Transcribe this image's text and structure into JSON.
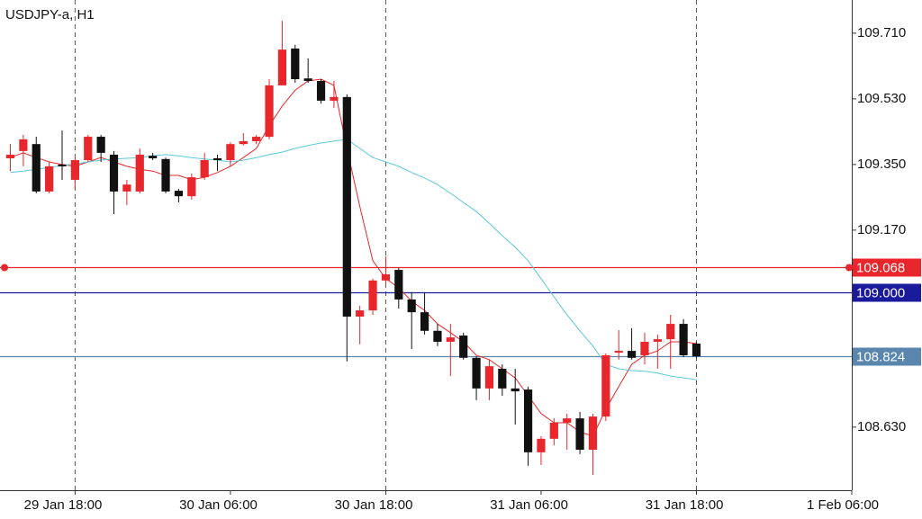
{
  "chart_data": {
    "type": "candlestick",
    "title": "USDJPY-a, H1",
    "up_color": "#e8262b",
    "down_color": "#111111",
    "open": [
      109.367,
      109.387,
      109.406,
      109.276,
      109.35,
      109.308,
      109.362,
      109.426,
      109.377,
      109.276,
      109.276,
      109.374,
      109.365,
      109.278,
      109.263,
      109.315,
      109.367,
      109.362,
      109.406,
      109.414,
      109.426,
      109.567,
      109.668,
      109.586,
      109.579,
      109.525,
      109.535,
      108.933,
      108.95,
      109.032,
      109.061,
      108.98,
      108.945,
      108.894,
      108.864,
      108.881,
      108.82,
      108.736,
      108.79,
      108.736,
      108.733,
      108.561,
      108.598,
      108.642,
      108.654,
      108.568,
      108.659,
      108.834,
      108.839,
      108.827,
      108.864,
      108.871,
      108.913,
      108.859
    ],
    "high": [
      109.406,
      109.431,
      109.426,
      109.357,
      109.443,
      109.369,
      109.431,
      109.431,
      109.387,
      109.308,
      109.394,
      109.382,
      109.369,
      109.283,
      109.325,
      109.382,
      109.377,
      109.411,
      109.436,
      109.431,
      109.584,
      109.744,
      109.678,
      109.641,
      109.584,
      109.579,
      109.542,
      108.963,
      109.037,
      109.098,
      109.066,
      109.0,
      109.0,
      108.913,
      108.913,
      108.889,
      108.824,
      108.815,
      108.802,
      108.79,
      108.741,
      108.605,
      108.654,
      108.667,
      108.672,
      108.667,
      108.832,
      108.896,
      108.901,
      108.889,
      108.884,
      108.938,
      108.926,
      108.864
    ],
    "low": [
      109.332,
      109.345,
      109.271,
      109.271,
      109.308,
      109.283,
      109.357,
      109.357,
      109.214,
      109.239,
      109.271,
      109.362,
      109.271,
      109.246,
      109.254,
      109.308,
      109.332,
      109.345,
      109.402,
      109.406,
      109.419,
      109.567,
      109.574,
      109.574,
      109.517,
      109.505,
      108.81,
      108.857,
      108.938,
      109.024,
      108.955,
      108.844,
      108.884,
      108.852,
      108.77,
      108.815,
      108.704,
      108.704,
      108.716,
      108.637,
      108.524,
      108.526,
      108.58,
      108.568,
      108.556,
      108.499,
      108.647,
      108.815,
      108.815,
      108.802,
      108.79,
      108.79,
      108.822,
      108.82
    ],
    "close": [
      109.377,
      109.419,
      109.276,
      109.345,
      109.345,
      109.362,
      109.426,
      109.382,
      109.276,
      109.295,
      109.377,
      109.367,
      109.276,
      109.263,
      109.315,
      109.362,
      109.362,
      109.406,
      109.414,
      109.426,
      109.567,
      109.665,
      109.584,
      109.579,
      109.525,
      109.535,
      108.933,
      108.95,
      109.032,
      109.049,
      108.98,
      108.945,
      108.894,
      108.864,
      108.876,
      108.82,
      108.736,
      108.797,
      108.736,
      108.728,
      108.561,
      108.598,
      108.642,
      108.654,
      108.568,
      108.659,
      108.827,
      108.839,
      108.82,
      108.864,
      108.871,
      108.913,
      108.827,
      108.824
    ],
    "series": [
      {
        "color": "#e8262b",
        "values": [
          109.369,
          109.382,
          109.369,
          109.357,
          109.35,
          109.345,
          109.357,
          109.369,
          109.357,
          109.345,
          109.337,
          109.332,
          109.32,
          109.32,
          109.308,
          109.315,
          109.328,
          109.345,
          109.369,
          109.394,
          109.456,
          109.51,
          109.554,
          109.579,
          109.584,
          109.567,
          109.394,
          109.234,
          109.086,
          109.037,
          109.012,
          108.975,
          108.95,
          108.913,
          108.889,
          108.864,
          108.827,
          108.815,
          108.79,
          108.765,
          108.716,
          108.667,
          108.642,
          108.642,
          108.617,
          108.605,
          108.679,
          108.741,
          108.802,
          108.827,
          108.839,
          108.864,
          108.864,
          108.859
        ]
      },
      {
        "color": "#5bc8dc",
        "values": [
          109.328,
          109.332,
          109.337,
          109.342,
          109.347,
          109.352,
          109.357,
          109.362,
          109.365,
          109.367,
          109.369,
          109.374,
          109.377,
          109.374,
          109.369,
          109.365,
          109.362,
          109.357,
          109.362,
          109.369,
          109.377,
          109.384,
          109.394,
          109.402,
          109.409,
          109.414,
          109.419,
          109.394,
          109.369,
          109.357,
          109.345,
          109.328,
          109.313,
          109.295,
          109.271,
          109.246,
          109.221,
          109.189,
          109.155,
          109.123,
          109.086,
          109.037,
          108.987,
          108.938,
          108.894,
          108.852,
          108.802,
          108.79,
          108.785,
          108.783,
          108.778,
          108.77,
          108.765,
          108.76
        ]
      }
    ],
    "hlines": [
      {
        "value": 109.068,
        "value_label": "109.068",
        "color": "#e8262b"
      },
      {
        "value": 109.0,
        "value_label": "109.000",
        "color": "#1a1a9c"
      },
      {
        "value": 108.824,
        "value_label": "108.824",
        "color": "#5a86ad"
      }
    ],
    "ylim": [
      108.457,
      109.801
    ],
    "yticks": [
      {
        "value": 109.71,
        "label": "109.710"
      },
      {
        "value": 109.53,
        "label": "109.530"
      },
      {
        "value": 109.35,
        "label": "109.350"
      },
      {
        "value": 109.17,
        "label": "109.170"
      },
      {
        "value": 108.63,
        "label": "108.630"
      }
    ],
    "xlim": [
      -0.8,
      65
    ],
    "xticks": [
      {
        "value": 5,
        "label": "29 Jan 18:00"
      },
      {
        "value": 17,
        "label": "30 Jan 06:00"
      },
      {
        "value": 29,
        "label": "30 Jan 18:00"
      },
      {
        "value": 41,
        "label": "31 Jan 06:00"
      },
      {
        "value": 53,
        "label": "31 Jan 18:00"
      },
      {
        "value": 65,
        "label": "1 Feb 06:00"
      }
    ]
  }
}
